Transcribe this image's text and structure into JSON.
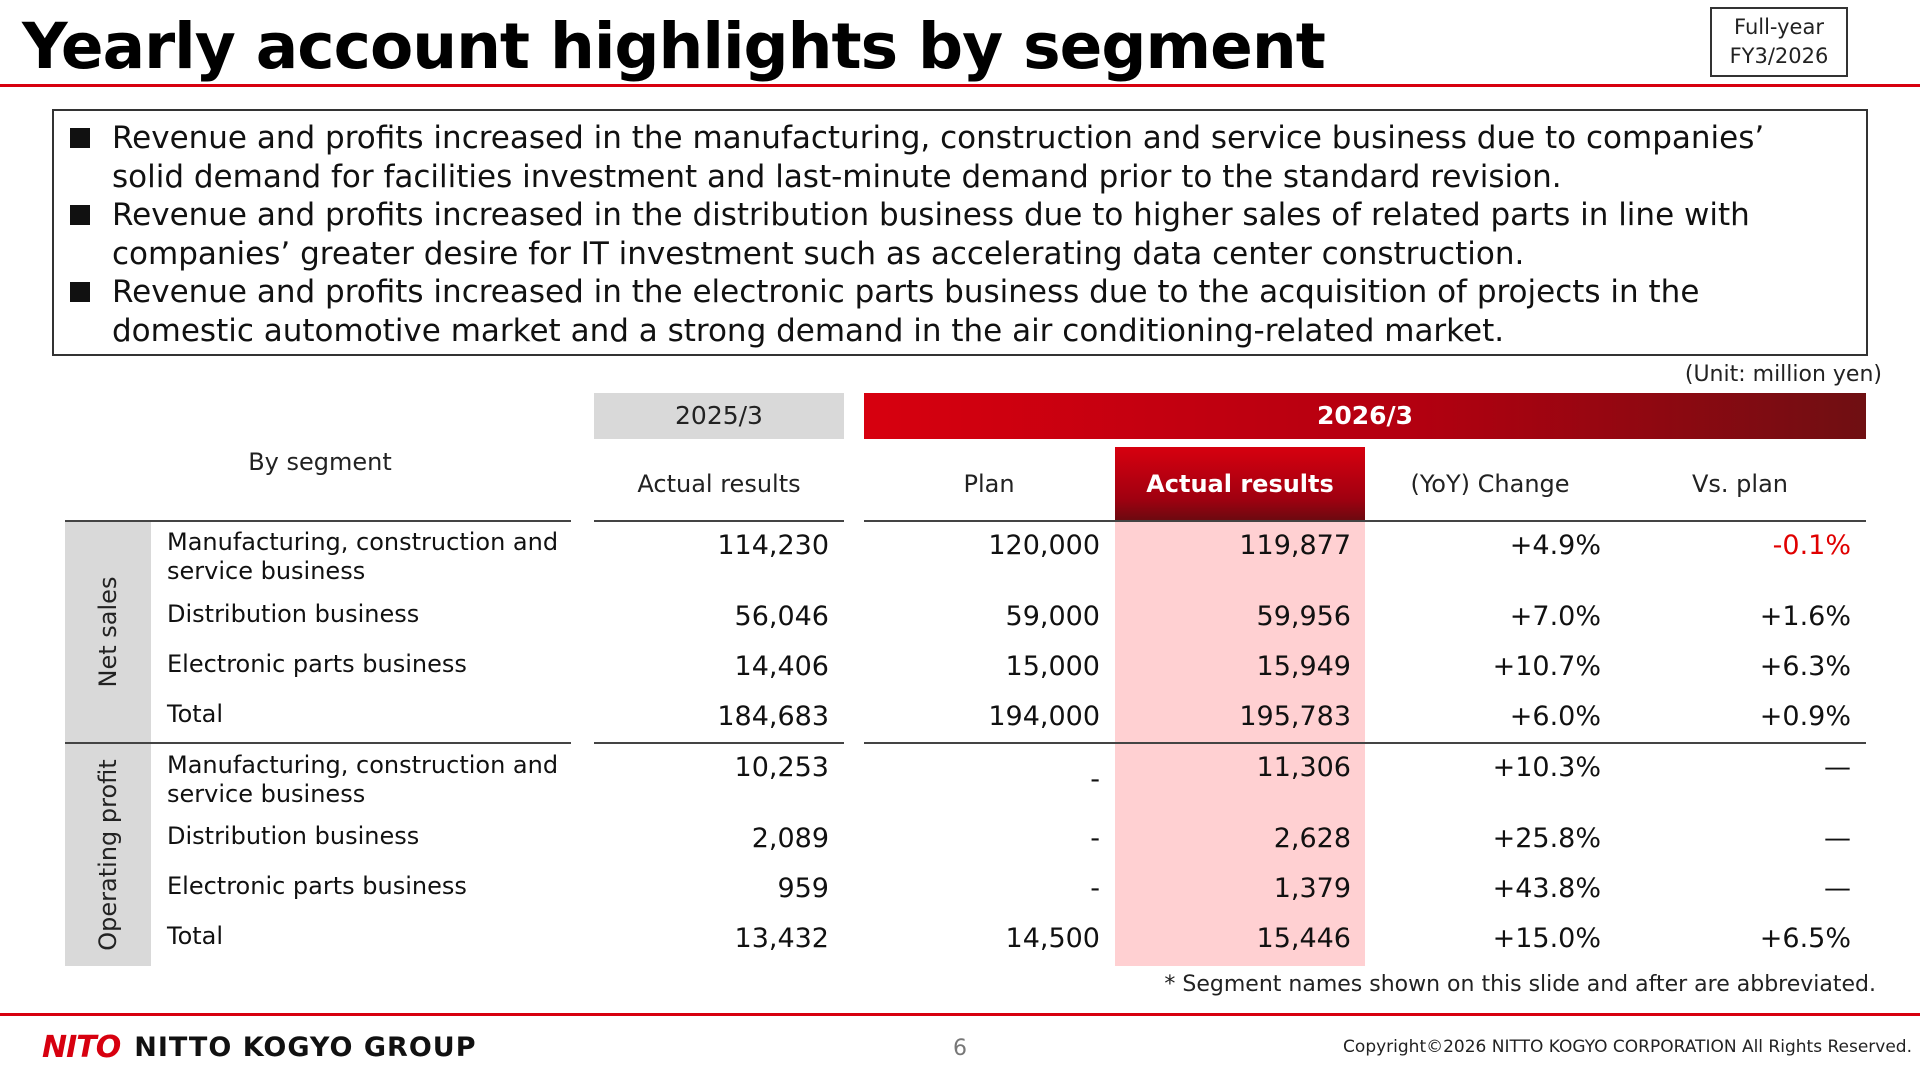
{
  "title": "Yearly account highlights by segment",
  "period_badge": {
    "line1": "Full-year",
    "line2": "FY3/2026"
  },
  "summary_bullets": [
    "Revenue and profits increased in the manufacturing, construction and service business due to companies’ solid demand for facilities investment and last-minute demand prior to the standard revision.",
    "Revenue and profits increased in the distribution business due to higher sales of related parts in line with companies’ greater desire for IT investment such as accelerating data center construction.",
    "Revenue and profits increased in the electronic parts business due to the acquisition of projects in the domestic automotive market and a strong demand in the air conditioning-related market."
  ],
  "unit": "(Unit: million yen)",
  "table": {
    "year_prev": "2025/3",
    "year_curr": "2026/3",
    "by_segment": "By segment",
    "col_prev_actual": "Actual results",
    "col_plan": "Plan",
    "col_actual": "Actual results",
    "col_yoy": "(YoY) Change",
    "col_vs_plan": "Vs. plan",
    "groups": [
      {
        "label": "Net sales",
        "rows": [
          {
            "name": "Manufacturing, construction and service business",
            "prev": "114,230",
            "plan": "120,000",
            "actual": "119,877",
            "yoy": "+4.9%",
            "vs_plan": "-0.1%"
          },
          {
            "name": "Distribution business",
            "prev": "56,046",
            "plan": "59,000",
            "actual": "59,956",
            "yoy": "+7.0%",
            "vs_plan": "+1.6%"
          },
          {
            "name": "Electronic parts business",
            "prev": "14,406",
            "plan": "15,000",
            "actual": "15,949",
            "yoy": "+10.7%",
            "vs_plan": "+6.3%"
          },
          {
            "name": "Total",
            "prev": "184,683",
            "plan": "194,000",
            "actual": "195,783",
            "yoy": "+6.0%",
            "vs_plan": "+0.9%"
          }
        ]
      },
      {
        "label": "Operating profit",
        "rows": [
          {
            "name": "Manufacturing, construction and service business",
            "prev": "10,253",
            "plan": "-",
            "actual": "11,306",
            "yoy": "+10.3%",
            "vs_plan": "—"
          },
          {
            "name": "Distribution business",
            "prev": "2,089",
            "plan": "-",
            "actual": "2,628",
            "yoy": "+25.8%",
            "vs_plan": "—"
          },
          {
            "name": "Electronic parts business",
            "prev": "959",
            "plan": "-",
            "actual": "1,379",
            "yoy": "+43.8%",
            "vs_plan": "—"
          },
          {
            "name": "Total",
            "prev": "13,432",
            "plan": "14,500",
            "actual": "15,446",
            "yoy": "+15.0%",
            "vs_plan": "+6.5%"
          }
        ]
      }
    ]
  },
  "footnote": "* Segment names shown on this slide and after are abbreviated.",
  "footer": {
    "logo_mark": "NITO",
    "logo_text": "NITTO KOGYO GROUP",
    "page_number": "6",
    "copyright": "Copyright©2026 NITTO KOGYO CORPORATION All Rights Reserved."
  },
  "colors": {
    "accent_red": "#d7000f",
    "highlight_pink": "#ffd0d2",
    "header_gray": "#d9d9d9",
    "negative_red": "#e00000"
  }
}
